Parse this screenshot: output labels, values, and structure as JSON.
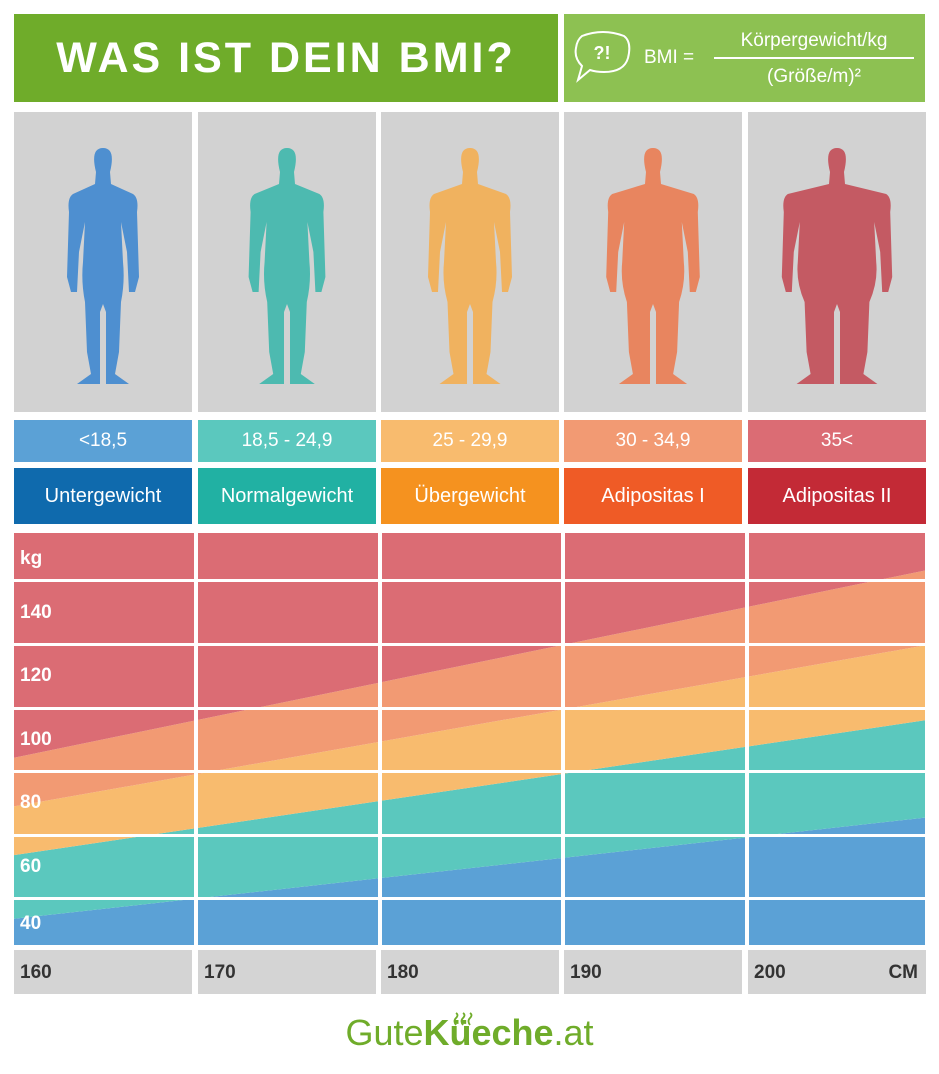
{
  "title": "WAS IST DEIN BMI?",
  "formula": {
    "lhs": "BMI =",
    "numerator": "Körpergewicht/kg",
    "denominator": "(Größe/m)²",
    "bubble_icon": "speech-bubble-question-exclamation-icon",
    "bubble_text": "?!"
  },
  "categories": [
    {
      "range": "<18,5",
      "label": "Untergewicht",
      "color": "#5ba1d6",
      "label_color": "#0f6aad",
      "figure_color": "#4e8fd0",
      "figure_width": 1.0
    },
    {
      "range": "18,5 - 24,9",
      "label": "Normalgewicht",
      "color": "#5bc8be",
      "label_color": "#21b1a3",
      "figure_color": "#4dbab0",
      "figure_width": 1.1
    },
    {
      "range": "25 - 29,9",
      "label": "Übergewicht",
      "color": "#f8bb6e",
      "label_color": "#f5921f",
      "figure_color": "#f0b25f",
      "figure_width": 1.25
    },
    {
      "range": "30 - 34,9",
      "label": "Adipositas I",
      "color": "#f29a73",
      "label_color": "#ef5b26",
      "figure_color": "#e8855f",
      "figure_width": 1.45
    },
    {
      "range": "35<",
      "label": "Adipositas II",
      "color": "#db6c74",
      "label_color": "#c32a36",
      "figure_color": "#c45a63",
      "figure_width": 1.8
    }
  ],
  "chart_data": {
    "type": "area",
    "x": [
      160,
      200
    ],
    "thresholds": [
      18.5,
      25,
      30,
      35
    ],
    "xlabel": "CM",
    "ylabel": "kg",
    "x_ticks": [
      "160",
      "170",
      "180",
      "190",
      "200"
    ],
    "y_ticks": [
      "140",
      "120",
      "100",
      "80",
      "60",
      "40"
    ],
    "series": [
      {
        "name": "Untergewicht",
        "lower": [
          40,
          40
        ],
        "upper": [
          47,
          74
        ]
      },
      {
        "name": "Normalgewicht",
        "lower": [
          47,
          74
        ],
        "upper": [
          64,
          100
        ]
      },
      {
        "name": "Übergewicht",
        "lower": [
          64,
          100
        ],
        "upper": [
          77,
          120
        ]
      },
      {
        "name": "Adipositas I",
        "lower": [
          77,
          120
        ],
        "upper": [
          90,
          140
        ]
      },
      {
        "name": "Adipositas II",
        "lower": [
          90,
          140
        ],
        "upper": [
          150,
          150
        ]
      }
    ]
  },
  "logo": {
    "part1": "Gute",
    "part2": "Küeche",
    "part3": ".at",
    "icon": "steam-icon"
  }
}
